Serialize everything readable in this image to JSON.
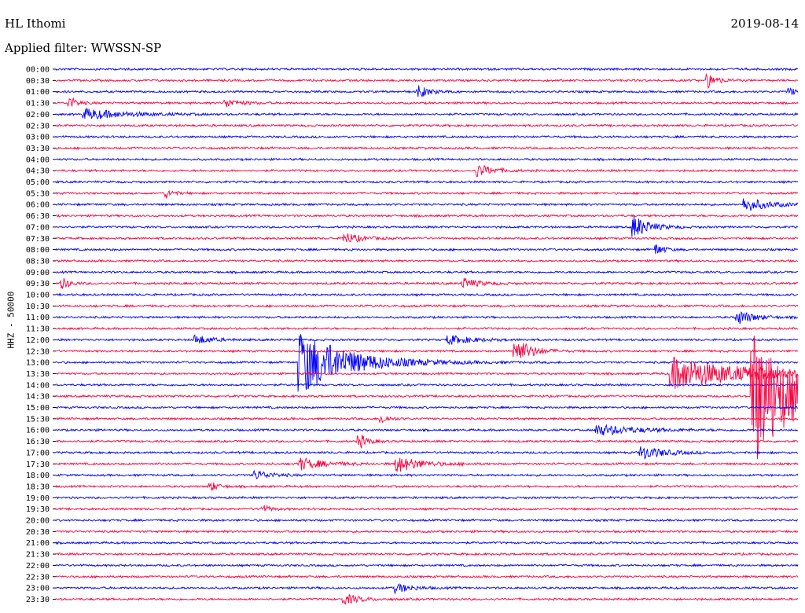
{
  "header": {
    "station": "HL Ithomi",
    "date": "2019-08-14",
    "filter_label": "Applied filter: WWSSN-SP",
    "channel_label": "HHZ - 50000"
  },
  "colors": {
    "even_row": "#0000ff",
    "odd_row": "#ff0040",
    "axis": "#000000"
  },
  "chart_data": {
    "type": "line",
    "title": "HL Ithomi",
    "subtitle": "Applied filter: WWSSN-SP",
    "date": "2019-08-14",
    "ylabel": "HHZ - 50000",
    "xlabel": "",
    "rows": [
      "00:00",
      "00:30",
      "01:00",
      "01:30",
      "02:00",
      "02:30",
      "03:00",
      "03:30",
      "04:00",
      "04:30",
      "05:00",
      "05:30",
      "06:00",
      "06:30",
      "07:00",
      "07:30",
      "08:00",
      "08:30",
      "09:00",
      "09:30",
      "10:00",
      "10:30",
      "11:00",
      "11:30",
      "12:00",
      "12:30",
      "13:00",
      "13:30",
      "14:00",
      "14:30",
      "15:00",
      "15:30",
      "16:00",
      "16:30",
      "17:00",
      "17:30",
      "18:00",
      "18:30",
      "19:00",
      "19:30",
      "20:00",
      "20:30",
      "21:00",
      "21:30",
      "22:00",
      "22:30",
      "23:00",
      "23:30"
    ],
    "row_minutes": 30,
    "events": [
      {
        "row": 1,
        "t": 0.88,
        "amp": 1.2,
        "dur": 0.012
      },
      {
        "row": 2,
        "t": 0.49,
        "amp": 1.0,
        "dur": 0.015
      },
      {
        "row": 2,
        "t": 0.99,
        "amp": 0.6,
        "dur": 0.01
      },
      {
        "row": 3,
        "t": 0.02,
        "amp": 1.0,
        "dur": 0.01
      },
      {
        "row": 3,
        "t": 0.23,
        "amp": 0.7,
        "dur": 0.02
      },
      {
        "row": 4,
        "t": 0.04,
        "amp": 1.0,
        "dur": 0.05
      },
      {
        "row": 9,
        "t": 0.57,
        "amp": 1.1,
        "dur": 0.02
      },
      {
        "row": 11,
        "t": 0.15,
        "amp": 0.7,
        "dur": 0.01
      },
      {
        "row": 12,
        "t": 0.93,
        "amp": 1.2,
        "dur": 0.03
      },
      {
        "row": 14,
        "t": 0.78,
        "amp": 2.0,
        "dur": 0.02
      },
      {
        "row": 15,
        "t": 0.39,
        "amp": 1.0,
        "dur": 0.02
      },
      {
        "row": 16,
        "t": 0.81,
        "amp": 1.0,
        "dur": 0.01
      },
      {
        "row": 19,
        "t": 0.01,
        "amp": 0.9,
        "dur": 0.01
      },
      {
        "row": 19,
        "t": 0.55,
        "amp": 0.9,
        "dur": 0.02
      },
      {
        "row": 22,
        "t": 0.92,
        "amp": 1.3,
        "dur": 0.02
      },
      {
        "row": 24,
        "t": 0.19,
        "amp": 0.8,
        "dur": 0.02
      },
      {
        "row": 24,
        "t": 0.53,
        "amp": 0.8,
        "dur": 0.03
      },
      {
        "row": 25,
        "t": 0.62,
        "amp": 2.4,
        "dur": 0.02
      },
      {
        "row": 26,
        "t": 0.33,
        "amp": 6.0,
        "dur": 0.06
      },
      {
        "row": 27,
        "t": 0.83,
        "amp": 3.0,
        "dur": 0.1
      },
      {
        "row": 29,
        "t": 0.94,
        "amp": 13.0,
        "dur": 0.05
      },
      {
        "row": 31,
        "t": 0.44,
        "amp": 0.8,
        "dur": 0.01
      },
      {
        "row": 32,
        "t": 0.73,
        "amp": 1.0,
        "dur": 0.05
      },
      {
        "row": 33,
        "t": 0.41,
        "amp": 1.3,
        "dur": 0.01
      },
      {
        "row": 34,
        "t": 0.79,
        "amp": 1.2,
        "dur": 0.03
      },
      {
        "row": 35,
        "t": 0.33,
        "amp": 1.1,
        "dur": 0.03
      },
      {
        "row": 35,
        "t": 0.46,
        "amp": 1.5,
        "dur": 0.03
      },
      {
        "row": 36,
        "t": 0.27,
        "amp": 0.8,
        "dur": 0.02
      },
      {
        "row": 37,
        "t": 0.21,
        "amp": 0.8,
        "dur": 0.01
      },
      {
        "row": 39,
        "t": 0.28,
        "amp": 0.6,
        "dur": 0.01
      },
      {
        "row": 46,
        "t": 0.46,
        "amp": 0.8,
        "dur": 0.02
      },
      {
        "row": 47,
        "t": 0.39,
        "amp": 0.9,
        "dur": 0.02
      }
    ]
  }
}
